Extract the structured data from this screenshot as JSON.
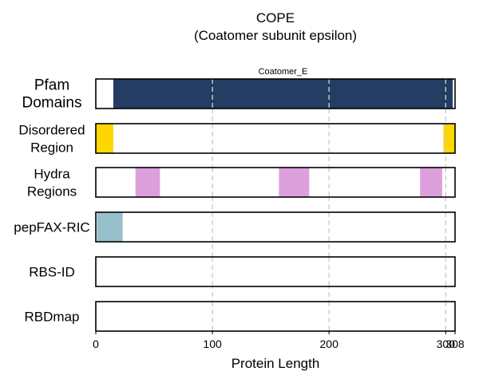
{
  "chart_data": {
    "type": "bar",
    "title": "COPE",
    "subtitle": "(Coatomer subunit epsilon)",
    "xlabel": "Protein Length",
    "xlim": [
      0,
      308
    ],
    "xticks": [
      0,
      100,
      200,
      300,
      308
    ],
    "xtick_labels": [
      "0",
      "100",
      "200",
      "300",
      "308"
    ],
    "gridlines_x": [
      100,
      200,
      300
    ],
    "grid": "vertical dashed",
    "tracks": [
      {
        "label_lines": [
          "Pfam",
          "Domains"
        ],
        "style": "large",
        "segments": [
          {
            "start": 15,
            "end": 306,
            "color": "#233d63",
            "label": "Coatomer_E"
          }
        ]
      },
      {
        "label_lines": [
          "Disordered",
          "Region"
        ],
        "style": "normal",
        "segments": [
          {
            "start": 0,
            "end": 15,
            "color": "#ffd700"
          },
          {
            "start": 298,
            "end": 308,
            "color": "#ffd700"
          }
        ]
      },
      {
        "label_lines": [
          "Hydra",
          "Regions"
        ],
        "style": "normal",
        "segments": [
          {
            "start": 34,
            "end": 55,
            "color": "#dda0dd"
          },
          {
            "start": 157,
            "end": 183,
            "color": "#dda0dd"
          },
          {
            "start": 278,
            "end": 297,
            "color": "#dda0dd"
          }
        ]
      },
      {
        "label_lines": [
          "pepFAX-RIC"
        ],
        "style": "normal",
        "segments": [
          {
            "start": 1,
            "end": 23,
            "color": "#96c0cb"
          }
        ]
      },
      {
        "label_lines": [
          "RBS-ID"
        ],
        "style": "normal",
        "segments": []
      },
      {
        "label_lines": [
          "RBDmap"
        ],
        "style": "normal",
        "segments": []
      }
    ]
  }
}
